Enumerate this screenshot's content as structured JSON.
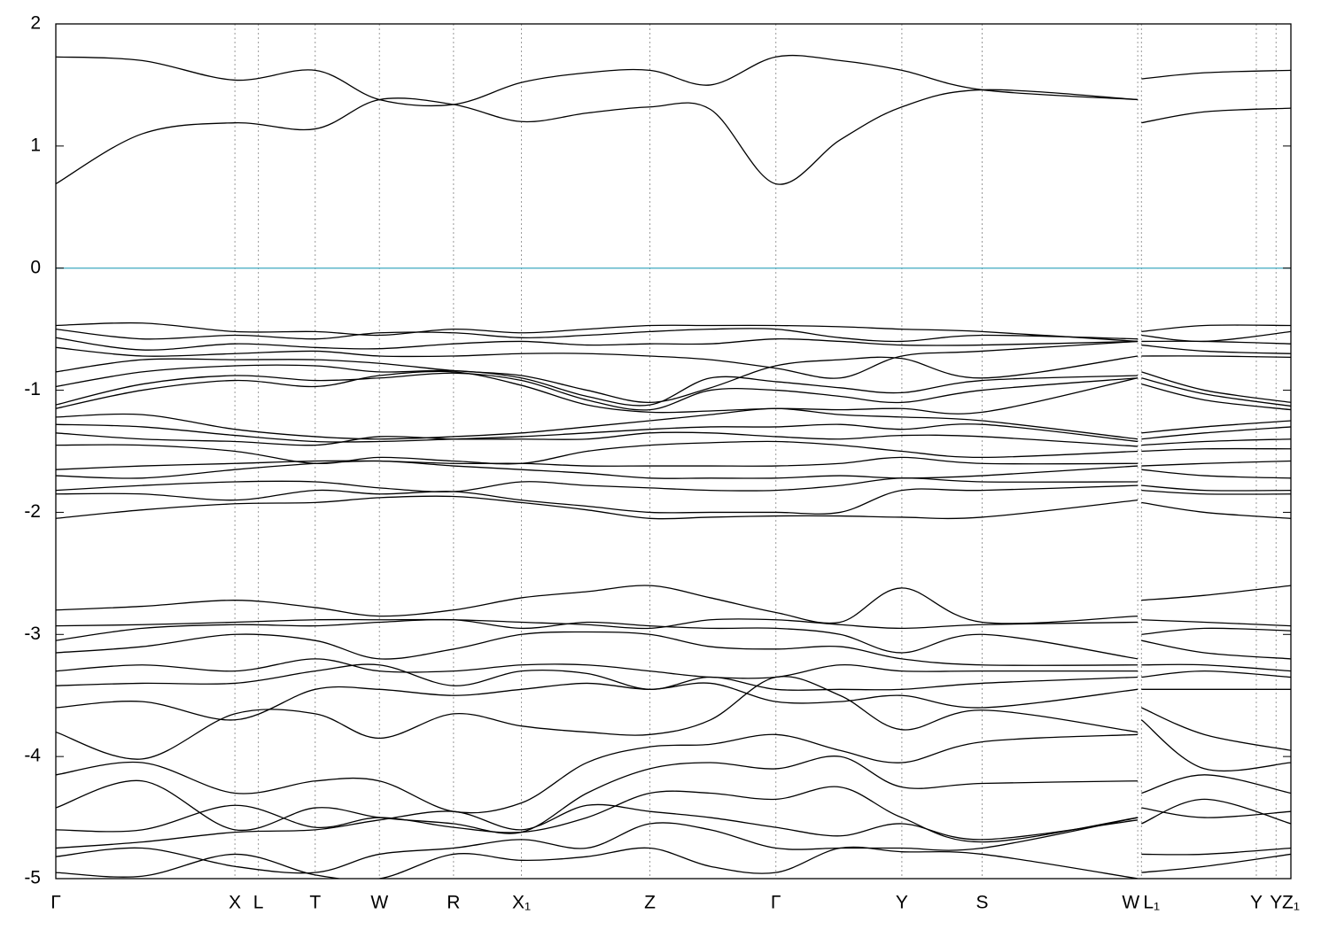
{
  "chart_data": {
    "type": "line",
    "line_color": "#000000",
    "grid": true,
    "hline": 0,
    "hline_color": "#3fa9c0",
    "xlim": [
      0,
      1
    ],
    "ylim": [
      -5,
      2
    ],
    "yticks": [
      -5,
      -4,
      -3,
      -2,
      -1,
      0,
      1,
      2
    ],
    "xticks": [
      {
        "value": 0,
        "label": "Γ"
      },
      {
        "value": 0.145,
        "label": "X"
      },
      {
        "value": 0.164,
        "label": "L"
      },
      {
        "value": 0.21,
        "label": "T"
      },
      {
        "value": 0.262,
        "label": "W"
      },
      {
        "value": 0.322,
        "label": "R"
      },
      {
        "value": 0.377,
        "label": "X₁"
      },
      {
        "value": 0.481,
        "label": "Z"
      },
      {
        "value": 0.583,
        "label": "Γ"
      },
      {
        "value": 0.685,
        "label": "Y"
      },
      {
        "value": 0.75,
        "label": "S"
      },
      {
        "value": 0.876,
        "label": "W"
      },
      {
        "value": 0.879,
        "label": "L₁"
      },
      {
        "value": 0.972,
        "label": "Y"
      },
      {
        "value": 0.988,
        "label": "Y"
      },
      {
        "value": 1,
        "label": "Z₁"
      }
    ],
    "x": [
      0,
      0.07,
      0.145,
      0.21,
      0.262,
      0.322,
      0.377,
      0.43,
      0.481,
      0.53,
      0.583,
      0.635,
      0.685,
      0.75,
      0.876,
      0.877,
      0.879,
      0.93,
      1
    ],
    "series": [
      {
        "values": [
          0.69,
          1.1,
          1.19,
          1.14,
          1.38,
          1.34,
          1.2,
          1.27,
          1.32,
          1.3,
          0.69,
          1.05,
          1.32,
          1.46,
          1.38,
          null,
          1.19,
          1.28,
          1.31
        ]
      },
      {
        "values": [
          1.73,
          1.7,
          1.54,
          1.62,
          1.38,
          1.34,
          1.52,
          1.6,
          1.62,
          1.5,
          1.73,
          1.7,
          1.62,
          1.46,
          1.38,
          null,
          1.55,
          1.6,
          1.62
        ]
      },
      {
        "values": [
          -0.47,
          -0.45,
          -0.52,
          -0.52,
          -0.55,
          -0.5,
          -0.53,
          -0.5,
          -0.47,
          -0.47,
          -0.47,
          -0.48,
          -0.5,
          -0.52,
          -0.6,
          null,
          -0.52,
          -0.47,
          -0.47
        ]
      },
      {
        "values": [
          -0.5,
          -0.58,
          -0.55,
          -0.58,
          -0.53,
          -0.53,
          -0.57,
          -0.55,
          -0.52,
          -0.5,
          -0.5,
          -0.57,
          -0.6,
          -0.55,
          -0.58,
          null,
          -0.55,
          -0.6,
          -0.52
        ]
      },
      {
        "values": [
          -0.57,
          -0.67,
          -0.62,
          -0.65,
          -0.66,
          -0.62,
          -0.6,
          -0.63,
          -0.62,
          -0.62,
          -0.58,
          -0.6,
          -0.63,
          -0.63,
          -0.6,
          null,
          -0.6,
          -0.6,
          -0.62
        ]
      },
      {
        "values": [
          -0.65,
          -0.72,
          -0.7,
          -0.68,
          -0.72,
          -0.72,
          -0.7,
          -0.7,
          -0.72,
          -0.75,
          -0.82,
          -0.9,
          -0.72,
          -0.68,
          -0.6,
          null,
          -0.63,
          -0.68,
          -0.7
        ]
      },
      {
        "values": [
          -0.85,
          -0.75,
          -0.75,
          -0.75,
          -0.78,
          -0.84,
          -0.88,
          -1.0,
          -1.1,
          -0.98,
          -0.8,
          -0.75,
          -0.74,
          -0.9,
          -0.72,
          null,
          -0.72,
          -0.72,
          -0.73
        ]
      },
      {
        "values": [
          -0.97,
          -0.85,
          -0.8,
          -0.8,
          -0.85,
          -0.84,
          -0.9,
          -1.05,
          -1.12,
          -0.9,
          -0.93,
          -0.98,
          -1.02,
          -0.92,
          -0.88,
          null,
          -0.85,
          -1.0,
          -1.1
        ]
      },
      {
        "values": [
          -1.12,
          -0.95,
          -0.88,
          -0.92,
          -0.9,
          -0.86,
          -0.92,
          -1.08,
          -1.16,
          -1.0,
          -1.0,
          -1.05,
          -1.1,
          -1.0,
          -0.9,
          null,
          -0.9,
          -1.03,
          -1.13
        ]
      },
      {
        "values": [
          -1.15,
          -1.0,
          -0.92,
          -0.97,
          -0.88,
          -0.85,
          -0.96,
          -1.12,
          -1.18,
          -1.17,
          -1.15,
          -1.16,
          -1.15,
          -1.18,
          -0.9,
          null,
          -0.95,
          -1.08,
          -1.16
        ]
      },
      {
        "values": [
          -1.22,
          -1.2,
          -1.32,
          -1.38,
          -1.4,
          -1.38,
          -1.35,
          -1.3,
          -1.25,
          -1.2,
          -1.15,
          -1.2,
          -1.22,
          -1.25,
          -1.4,
          null,
          -1.35,
          -1.3,
          -1.25
        ]
      },
      {
        "values": [
          -1.28,
          -1.3,
          -1.37,
          -1.42,
          -1.42,
          -1.4,
          -1.38,
          -1.35,
          -1.32,
          -1.3,
          -1.3,
          -1.28,
          -1.32,
          -1.28,
          -1.42,
          null,
          -1.4,
          -1.35,
          -1.3
        ]
      },
      {
        "values": [
          -1.35,
          -1.4,
          -1.42,
          -1.45,
          -1.38,
          -1.4,
          -1.4,
          -1.4,
          -1.35,
          -1.35,
          -1.38,
          -1.4,
          -1.37,
          -1.38,
          -1.46,
          null,
          -1.45,
          -1.42,
          -1.4
        ]
      },
      {
        "values": [
          -1.45,
          -1.45,
          -1.5,
          -1.6,
          -1.55,
          -1.58,
          -1.6,
          -1.5,
          -1.45,
          -1.43,
          -1.42,
          -1.45,
          -1.5,
          -1.55,
          -1.5,
          null,
          -1.5,
          -1.48,
          -1.48
        ]
      },
      {
        "values": [
          -1.65,
          -1.62,
          -1.6,
          -1.58,
          -1.58,
          -1.6,
          -1.6,
          -1.62,
          -1.62,
          -1.62,
          -1.62,
          -1.6,
          -1.55,
          -1.6,
          -1.6,
          null,
          -1.62,
          -1.6,
          -1.58
        ]
      },
      {
        "values": [
          -1.7,
          -1.72,
          -1.65,
          -1.6,
          -1.58,
          -1.62,
          -1.65,
          -1.68,
          -1.72,
          -1.72,
          -1.72,
          -1.7,
          -1.72,
          -1.7,
          -1.62,
          null,
          -1.65,
          -1.7,
          -1.72
        ]
      },
      {
        "values": [
          -1.82,
          -1.78,
          -1.75,
          -1.75,
          -1.8,
          -1.83,
          -1.75,
          -1.78,
          -1.8,
          -1.82,
          -1.82,
          -1.78,
          -1.72,
          -1.75,
          -1.75,
          null,
          -1.78,
          -1.82,
          -1.82
        ]
      },
      {
        "values": [
          -1.85,
          -1.85,
          -1.9,
          -1.82,
          -1.85,
          -1.83,
          -1.9,
          -1.95,
          -2.0,
          -2.0,
          -2.0,
          -2.0,
          -1.82,
          -1.82,
          -1.78,
          null,
          -1.82,
          -1.85,
          -1.85
        ]
      },
      {
        "values": [
          -2.05,
          -1.98,
          -1.93,
          -1.92,
          -1.88,
          -1.87,
          -1.92,
          -1.98,
          -2.05,
          -2.04,
          -2.03,
          -2.03,
          -2.04,
          -2.04,
          -1.9,
          null,
          -1.92,
          -2.0,
          -2.05
        ]
      },
      {
        "values": [
          -2.8,
          -2.77,
          -2.72,
          -2.78,
          -2.85,
          -2.8,
          -2.7,
          -2.65,
          -2.6,
          -2.7,
          -2.82,
          -2.9,
          -2.62,
          -2.9,
          -2.85,
          null,
          -2.72,
          -2.68,
          -2.6
        ]
      },
      {
        "values": [
          -2.93,
          -2.92,
          -2.9,
          -2.88,
          -2.88,
          -2.88,
          -2.9,
          -2.92,
          -2.95,
          -2.88,
          -2.88,
          -2.92,
          -2.95,
          -2.92,
          -2.9,
          null,
          -2.88,
          -2.9,
          -2.93
        ]
      },
      {
        "values": [
          -3.05,
          -2.95,
          -2.92,
          -2.93,
          -2.9,
          -2.88,
          -2.95,
          -2.9,
          -2.93,
          -2.95,
          -2.95,
          -3.0,
          -3.15,
          -3.0,
          -3.2,
          null,
          -3.0,
          -2.95,
          -2.97
        ]
      },
      {
        "values": [
          -3.15,
          -3.1,
          -3.0,
          -3.05,
          -3.2,
          -3.12,
          -3.0,
          -2.98,
          -3.0,
          -3.1,
          -3.12,
          -3.1,
          -3.2,
          -3.25,
          -3.25,
          null,
          -3.05,
          -3.15,
          -3.2
        ]
      },
      {
        "values": [
          -3.3,
          -3.25,
          -3.3,
          -3.2,
          -3.3,
          -3.3,
          -3.25,
          -3.25,
          -3.3,
          -3.35,
          -3.35,
          -3.25,
          -3.3,
          -3.3,
          -3.3,
          null,
          -3.25,
          -3.25,
          -3.3
        ]
      },
      {
        "values": [
          -3.42,
          -3.4,
          -3.4,
          -3.3,
          -3.25,
          -3.42,
          -3.3,
          -3.32,
          -3.45,
          -3.35,
          -3.45,
          -3.45,
          -3.45,
          -3.4,
          -3.35,
          null,
          -3.35,
          -3.3,
          -3.35
        ]
      },
      {
        "values": [
          -3.6,
          -3.55,
          -3.7,
          -3.45,
          -3.45,
          -3.5,
          -3.45,
          -3.4,
          -3.45,
          -3.4,
          -3.55,
          -3.55,
          -3.5,
          -3.6,
          -3.45,
          null,
          -3.45,
          -3.45,
          -3.45
        ]
      },
      {
        "values": [
          -3.8,
          -4.02,
          -3.65,
          -3.65,
          -3.85,
          -3.65,
          -3.75,
          -3.8,
          -3.82,
          -3.7,
          -3.35,
          -3.5,
          -3.78,
          -3.62,
          -3.8,
          null,
          -3.6,
          -3.82,
          -3.95
        ]
      },
      {
        "values": [
          -4.15,
          -4.05,
          -4.3,
          -4.2,
          -4.2,
          -4.45,
          -4.38,
          -4.05,
          -3.92,
          -3.9,
          -3.82,
          -3.95,
          -4.05,
          -3.88,
          -3.82,
          null,
          -3.7,
          -4.1,
          -4.05
        ]
      },
      {
        "values": [
          -4.42,
          -4.2,
          -4.6,
          -4.42,
          -4.5,
          -4.55,
          -4.62,
          -4.3,
          -4.1,
          -4.05,
          -4.1,
          -4.0,
          -4.25,
          -4.22,
          -4.2,
          null,
          -4.3,
          -4.15,
          -4.3
        ]
      },
      {
        "values": [
          -4.6,
          -4.6,
          -4.4,
          -4.58,
          -4.5,
          -4.58,
          -4.62,
          -4.5,
          -4.3,
          -4.3,
          -4.35,
          -4.25,
          -4.5,
          -4.7,
          -4.5,
          null,
          -4.42,
          -4.5,
          -4.45
        ]
      },
      {
        "values": [
          -4.75,
          -4.7,
          -4.62,
          -4.6,
          -4.52,
          -4.45,
          -4.6,
          -4.4,
          -4.45,
          -4.5,
          -4.58,
          -4.65,
          -4.55,
          -4.68,
          -4.52,
          null,
          -4.55,
          -4.35,
          -4.55
        ]
      },
      {
        "values": [
          -4.82,
          -4.75,
          -4.9,
          -4.95,
          -4.8,
          -4.75,
          -4.68,
          -4.75,
          -4.55,
          -4.6,
          -4.75,
          -4.75,
          -4.75,
          -4.75,
          -4.5,
          null,
          -4.8,
          -4.8,
          -4.75
        ]
      },
      {
        "values": [
          -4.95,
          -4.98,
          -4.8,
          -4.97,
          -5.0,
          -4.8,
          -4.85,
          -4.82,
          -4.75,
          -4.9,
          -4.95,
          -4.75,
          -4.78,
          -4.8,
          -5.0,
          null,
          -4.95,
          -4.9,
          -4.8
        ]
      }
    ]
  }
}
